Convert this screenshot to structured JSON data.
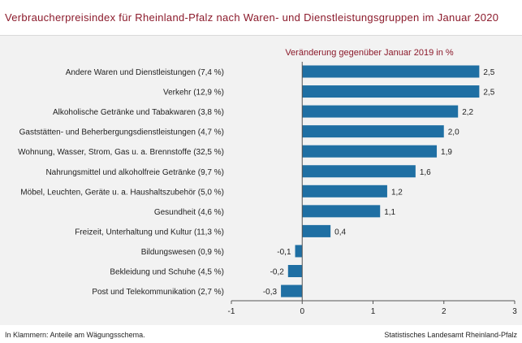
{
  "title": "Verbraucherpreisindex für Rheinland-Pfalz nach Waren- und Dienstleistungsgruppen im Januar 2020",
  "footer": {
    "note": "In Klammern: Anteile am Wägungsschema.",
    "source": "Statistisches Landesamt Rheinland-Pfalz"
  },
  "colors": {
    "bar": "#1f6fa3",
    "title": "#8b1a2b",
    "panel": "#f2f2f2"
  },
  "chart_data": {
    "type": "bar",
    "orientation": "horizontal",
    "subtitle": "Veränderung gegenüber Januar 2019 in %",
    "categories": [
      "Andere Waren und Dienstleistungen (7,4 %)",
      "Verkehr (12,9 %)",
      "Alkoholische Getränke und Tabakwaren (3,8 %)",
      "Gaststätten- und Beherbergungsdienstleistungen (4,7 %)",
      "Wohnung, Wasser, Strom, Gas u. a. Brennstoffe (32,5 %)",
      "Nahrungsmittel und alkoholfreie Getränke (9,7 %)",
      "Möbel, Leuchten, Geräte u. a. Haushaltszubehör (5,0 %)",
      "Gesundheit (4,6 %)",
      "Freizeit, Unterhaltung und Kultur (11,3 %)",
      "Bildungswesen (0,9 %)",
      "Bekleidung und Schuhe (4,5 %)",
      "Post und Telekommunikation (2,7 %)"
    ],
    "values": [
      2.5,
      2.5,
      2.2,
      2.0,
      1.9,
      1.6,
      1.2,
      1.1,
      0.4,
      -0.1,
      -0.2,
      -0.3
    ],
    "value_labels": [
      "2,5",
      "2,5",
      "2,2",
      "2,0",
      "1,9",
      "1,6",
      "1,2",
      "1,1",
      "0,4",
      "-0,1",
      "-0,2",
      "-0,3"
    ],
    "xlim": [
      -1,
      3
    ],
    "xticks": [
      -1,
      0,
      1,
      2,
      3
    ],
    "xtick_labels": [
      "-1",
      "0",
      "1",
      "2",
      "3"
    ],
    "grid": false,
    "legend": "none"
  }
}
